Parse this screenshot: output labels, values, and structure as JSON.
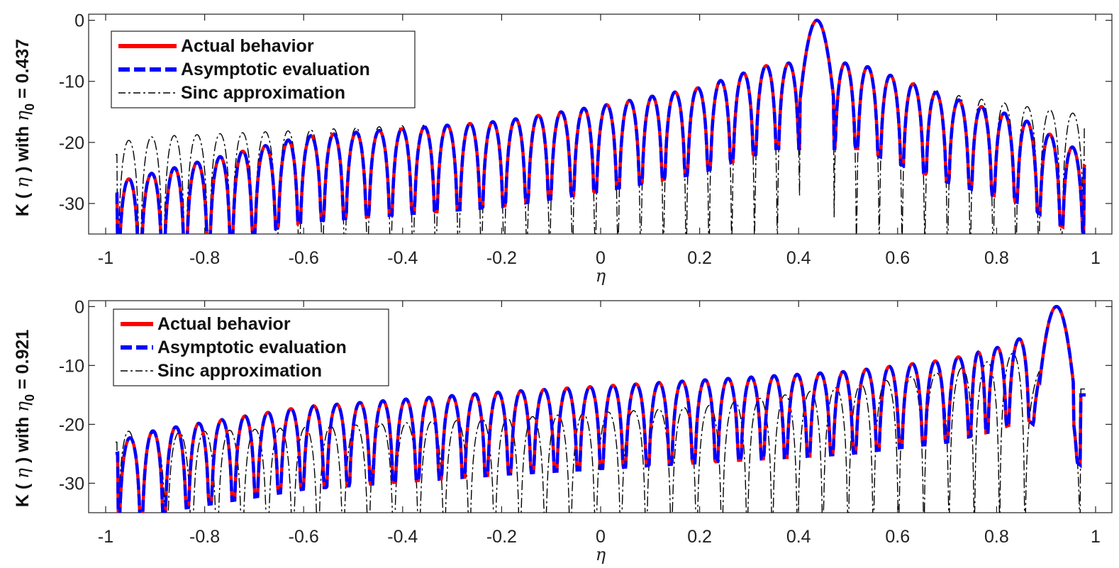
{
  "chart_data": [
    {
      "type": "line",
      "eta0": 0.437,
      "ylabel": {
        "prefix": "K ( ",
        "var": "η",
        "mid": " )  with  ",
        "sub_var": "η",
        "sub": "0",
        "suffix": " = 0.437"
      },
      "xlabel": "η",
      "xlim": [
        -1,
        1
      ],
      "ylim": [
        -35,
        1
      ],
      "xticks": [
        "-1",
        "-0.8",
        "-0.6",
        "-0.4",
        "-0.2",
        "0",
        "0.2",
        "0.4",
        "0.6",
        "0.8",
        "1"
      ],
      "yticks": [
        "0",
        "-10",
        "-20",
        "-30"
      ],
      "legend_position": "top-left",
      "series": [
        {
          "name": "Actual behavior",
          "color": "#ff0000",
          "style": "solid"
        },
        {
          "name": "Asymptotic evaluation",
          "color": "#0000ff",
          "style": "dashed"
        },
        {
          "name": "Sinc approximation",
          "color": "#000000",
          "style": "dash-dot"
        }
      ],
      "envelope_actual": {
        "eta": [
          -0.98,
          -0.6,
          -0.2,
          0.0,
          0.2,
          0.35,
          0.52,
          0.7,
          0.85,
          0.98
        ],
        "db": [
          -26.5,
          -19.0,
          -16.5,
          -14.0,
          -11.0,
          -7.0,
          -7.0,
          -12.5,
          -16.0,
          -22.0
        ]
      },
      "envelope_sinc": {
        "eta": [
          -0.98,
          -0.9,
          -0.6,
          -0.2,
          0.0,
          0.2,
          0.35,
          0.52,
          0.7,
          0.85,
          0.98
        ],
        "db": [
          -20.0,
          -19.0,
          -18.0,
          -16.5,
          -14.0,
          -11.0,
          -7.0,
          -7.0,
          -12.0,
          -14.0,
          -15.5
        ]
      },
      "nulls": [
        -0.976,
        -0.931,
        -0.884,
        -0.839,
        -0.792,
        -0.746,
        -0.701,
        -0.654,
        -0.609,
        -0.562,
        -0.517,
        -0.471,
        -0.424,
        -0.379,
        -0.333,
        -0.287,
        -0.241,
        -0.195,
        -0.149,
        -0.103,
        -0.057,
        -0.011,
        0.035,
        0.081,
        0.127,
        0.173,
        0.219,
        0.265,
        0.311,
        0.357,
        0.403,
        0.471,
        0.517,
        0.563,
        0.609,
        0.655,
        0.701,
        0.747,
        0.793,
        0.839,
        0.885,
        0.931,
        0.977
      ]
    },
    {
      "type": "line",
      "eta0": 0.921,
      "ylabel": {
        "prefix": "K ( ",
        "var": "η",
        "mid": " )  with  ",
        "sub_var": "η",
        "sub": "0",
        "suffix": " = 0.921"
      },
      "xlabel": "η",
      "xlim": [
        -1,
        1
      ],
      "ylim": [
        -35,
        1
      ],
      "xticks": [
        "-1",
        "-0.8",
        "-0.6",
        "-0.4",
        "-0.2",
        "0",
        "0.2",
        "0.4",
        "0.6",
        "0.8",
        "1"
      ],
      "yticks": [
        "0",
        "-10",
        "-20",
        "-30"
      ],
      "legend_position": "top-left",
      "series": [
        {
          "name": "Actual behavior",
          "color": "#ff0000",
          "style": "solid"
        },
        {
          "name": "Asymptotic evaluation",
          "color": "#0000ff",
          "style": "dashed"
        },
        {
          "name": "Sinc approximation",
          "color": "#000000",
          "style": "dash-dot"
        }
      ],
      "envelope_actual": {
        "eta": [
          -0.98,
          -0.9,
          -0.6,
          -0.2,
          0.2,
          0.5,
          0.7,
          0.8,
          0.86,
          0.97
        ],
        "db": [
          -23.0,
          -21.0,
          -17.0,
          -14.5,
          -12.5,
          -11.0,
          -9.0,
          -7.0,
          -5.0,
          -13.0
        ]
      },
      "envelope_sinc": {
        "eta": [
          -0.98,
          -0.9,
          -0.6,
          -0.2,
          0.2,
          0.5,
          0.7,
          0.8,
          0.86,
          0.97
        ],
        "db": [
          -21.0,
          -21.5,
          -20.5,
          -19.0,
          -17.0,
          -13.5,
          -11.0,
          -9.0,
          -7.0,
          -12.0
        ]
      },
      "nulls_actual": [
        -0.975,
        -0.928,
        -0.882,
        -0.835,
        -0.789,
        -0.742,
        -0.696,
        -0.649,
        -0.603,
        -0.556,
        -0.51,
        -0.463,
        -0.417,
        -0.37,
        -0.324,
        -0.277,
        -0.231,
        -0.184,
        -0.138,
        -0.091,
        -0.045,
        0.002,
        0.048,
        0.095,
        0.141,
        0.188,
        0.234,
        0.281,
        0.327,
        0.374,
        0.42,
        0.467,
        0.513,
        0.56,
        0.606,
        0.653,
        0.699,
        0.746,
        0.78,
        0.822,
        0.868,
        0.969
      ],
      "nulls_sinc": [
        -0.977,
        -0.93,
        -0.877,
        -0.826,
        -0.775,
        -0.724,
        -0.673,
        -0.622,
        -0.571,
        -0.52,
        -0.469,
        -0.418,
        -0.367,
        -0.316,
        -0.265,
        -0.214,
        -0.163,
        -0.112,
        -0.061,
        -0.01,
        0.041,
        0.092,
        0.143,
        0.194,
        0.245,
        0.296,
        0.347,
        0.398,
        0.449,
        0.5,
        0.551,
        0.602,
        0.653,
        0.704,
        0.755,
        0.806,
        0.857,
        0.97
      ]
    }
  ]
}
